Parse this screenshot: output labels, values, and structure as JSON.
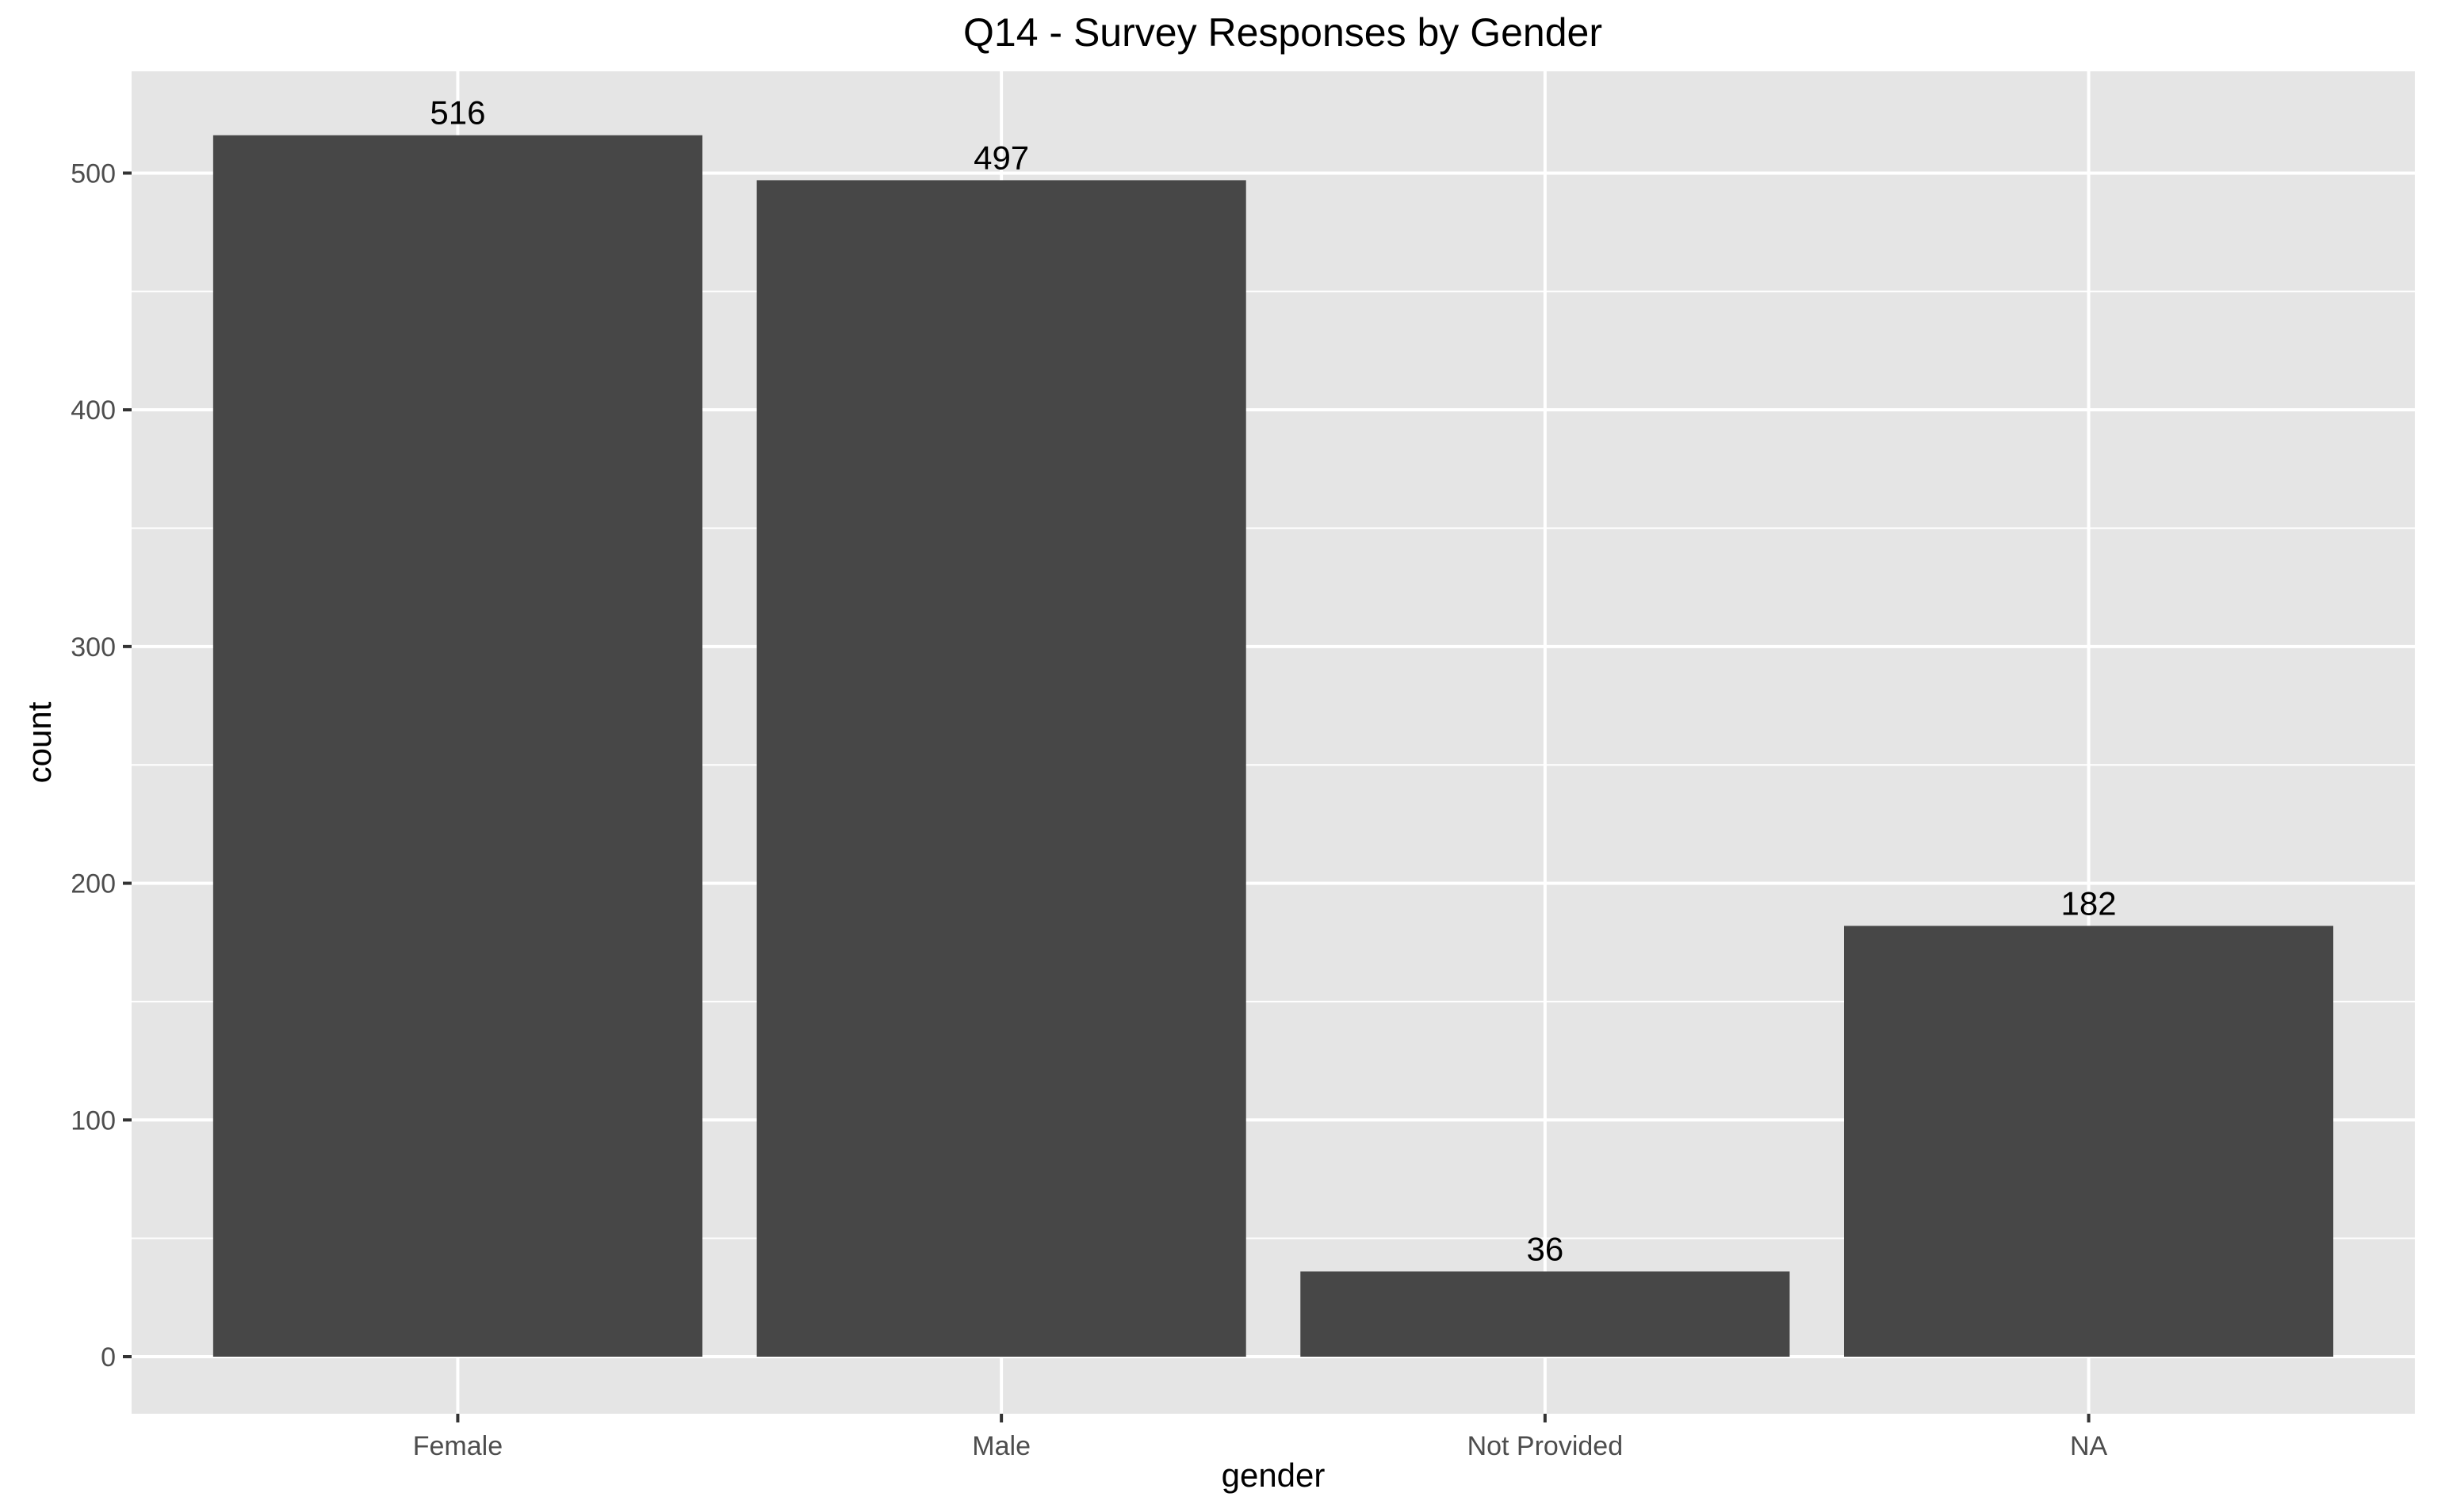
{
  "chart_data": {
    "type": "bar",
    "title": "Q14 - Survey Responses by Gender",
    "xlabel": "gender",
    "ylabel": "count",
    "categories": [
      "Female",
      "Male",
      "Not Provided",
      "NA"
    ],
    "values": [
      516,
      497,
      36,
      182
    ],
    "data_labels": [
      "516",
      "497",
      "36",
      "182"
    ],
    "ylim": [
      0,
      540
    ],
    "yticks": [
      0,
      100,
      200,
      300,
      400,
      500
    ],
    "grid": true,
    "legend": "none",
    "colors": {
      "bar": "#474747",
      "panel": "#e5e5e5",
      "grid": "#ffffff",
      "tick": "#333333",
      "tick_label": "#4d4d4d"
    }
  }
}
